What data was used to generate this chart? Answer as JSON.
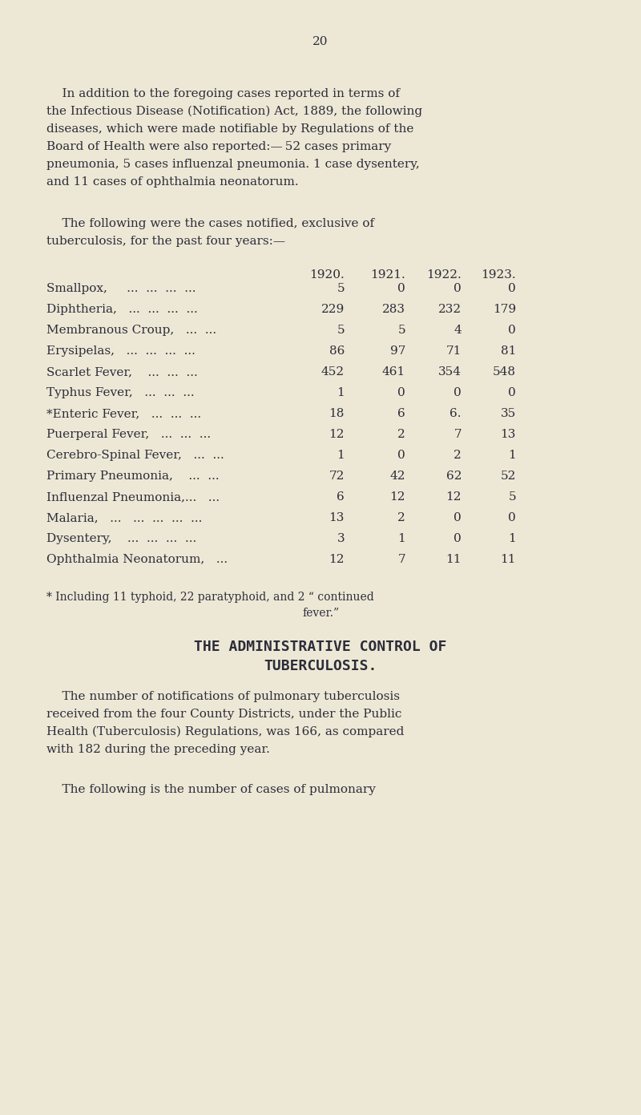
{
  "bg_color": "#ede8d5",
  "text_color": "#2c2c3a",
  "page_number": "20",
  "col_years": [
    "1920.",
    "1921.",
    "1922.",
    "1923."
  ],
  "table_rows": [
    {
      "label": "Smallpox,     ...  ...  ...  ...",
      "vals": [
        "5",
        "0",
        "0",
        "0"
      ]
    },
    {
      "label": "Diphtheria,   ...  ...  ...  ...",
      "vals": [
        "229",
        "283",
        "232",
        "179"
      ]
    },
    {
      "label": "Membranous Croup,   ...  ...",
      "vals": [
        "5",
        "5",
        "4",
        "0"
      ]
    },
    {
      "label": "Erysipelas,   ...  ...  ...  ...",
      "vals": [
        "86",
        "97",
        "71",
        "81"
      ]
    },
    {
      "label": "Scarlet Fever,    ...  ...  ...",
      "vals": [
        "452",
        "461",
        "354",
        "548"
      ]
    },
    {
      "label": "Typhus Fever,   ...  ...  ...",
      "vals": [
        "1",
        "0",
        "0",
        "0"
      ]
    },
    {
      "label": "*Enteric Fever,   ...  ...  ...",
      "vals": [
        "18",
        "6",
        "6.",
        "35"
      ]
    },
    {
      "label": "Puerperal Fever,   ...  ...  ...",
      "vals": [
        "12",
        "2",
        "7",
        "13"
      ]
    },
    {
      "label": "Cerebro-Spinal Fever,   ...  ...",
      "vals": [
        "1",
        "0",
        "2",
        "1"
      ]
    },
    {
      "label": "Primary Pneumonia,    ...  ...",
      "vals": [
        "72",
        "42",
        "62",
        "52"
      ]
    },
    {
      "label": "Influenzal Pneumonia,...   ...",
      "vals": [
        "6",
        "12",
        "12",
        "5"
      ]
    },
    {
      "label": "Malaria,   ...   ...  ...  ...  ...",
      "vals": [
        "13",
        "2",
        "0",
        "0"
      ]
    },
    {
      "label": "Dysentery,    ...  ...  ...  ...",
      "vals": [
        "3",
        "1",
        "0",
        "1"
      ]
    },
    {
      "label": "Ophthalmia Neonatorum,   ...",
      "vals": [
        "12",
        "7",
        "11",
        "11"
      ]
    }
  ],
  "body_fs": 11.0,
  "small_fs": 10.0,
  "table_fs": 11.0,
  "title_fs": 13.0
}
